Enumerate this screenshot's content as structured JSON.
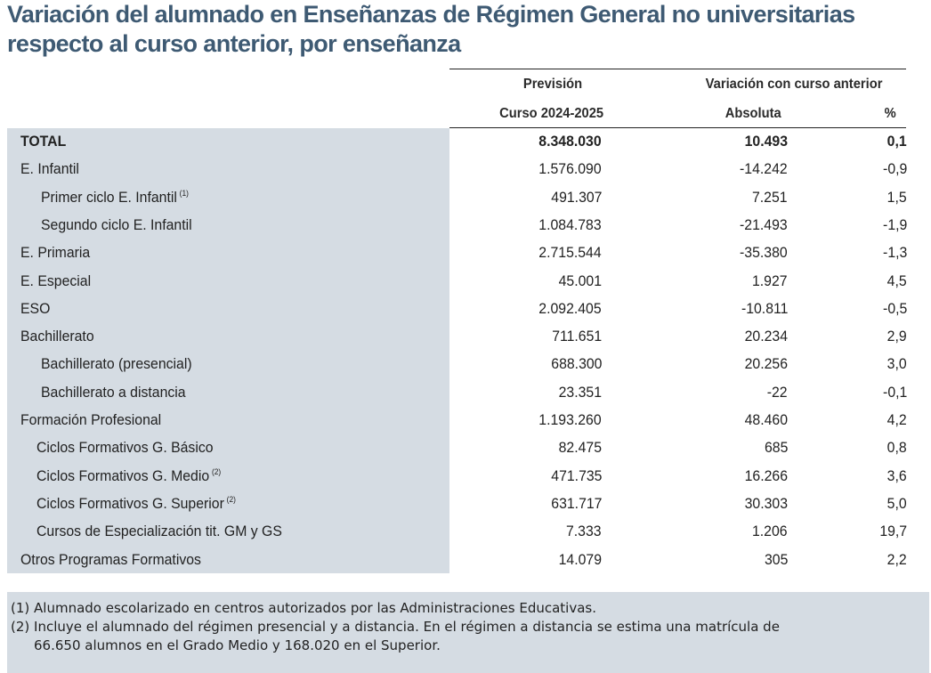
{
  "title": {
    "line1": "Variación del alumnado en Enseñanzas de Régimen General no universitarias",
    "line2": "respecto al curso anterior, por enseñanza"
  },
  "header": {
    "col1_line1": "Previsión",
    "col1_line2": "Curso 2024-2025",
    "group_label": "Variación con curso anterior",
    "col2": "Absoluta",
    "col3": "%"
  },
  "rows": [
    {
      "label": "TOTAL",
      "sup": "",
      "indent": 0,
      "bold": true,
      "prevision": "8.348.030",
      "absoluta": "10.493",
      "pct": "0,1"
    },
    {
      "label": "E. Infantil",
      "sup": "",
      "indent": 0,
      "bold": false,
      "prevision": "1.576.090",
      "absoluta": "-14.242",
      "pct": "-0,9"
    },
    {
      "label": "Primer ciclo E. Infantil",
      "sup": "(1)",
      "indent": 2,
      "bold": false,
      "prevision": "491.307",
      "absoluta": "7.251",
      "pct": "1,5"
    },
    {
      "label": "Segundo ciclo E. Infantil",
      "sup": "",
      "indent": 2,
      "bold": false,
      "prevision": "1.084.783",
      "absoluta": "-21.493",
      "pct": "-1,9"
    },
    {
      "label": "E. Primaria",
      "sup": "",
      "indent": 0,
      "bold": false,
      "prevision": "2.715.544",
      "absoluta": "-35.380",
      "pct": "-1,3"
    },
    {
      "label": "E. Especial",
      "sup": "",
      "indent": 0,
      "bold": false,
      "prevision": "45.001",
      "absoluta": "1.927",
      "pct": "4,5"
    },
    {
      "label": "ESO",
      "sup": "",
      "indent": 0,
      "bold": false,
      "prevision": "2.092.405",
      "absoluta": "-10.811",
      "pct": "-0,5"
    },
    {
      "label": "Bachillerato",
      "sup": "",
      "indent": 0,
      "bold": false,
      "prevision": "711.651",
      "absoluta": "20.234",
      "pct": "2,9"
    },
    {
      "label": "Bachillerato (presencial)",
      "sup": "",
      "indent": 2,
      "bold": false,
      "prevision": "688.300",
      "absoluta": "20.256",
      "pct": "3,0"
    },
    {
      "label": "Bachillerato a distancia",
      "sup": "",
      "indent": 2,
      "bold": false,
      "prevision": "23.351",
      "absoluta": "-22",
      "pct": "-0,1"
    },
    {
      "label": "Formación Profesional",
      "sup": "",
      "indent": 0,
      "bold": false,
      "prevision": "1.193.260",
      "absoluta": "48.460",
      "pct": "4,2"
    },
    {
      "label": "Ciclos Formativos G. Básico",
      "sup": "",
      "indent": 1,
      "bold": false,
      "prevision": "82.475",
      "absoluta": "685",
      "pct": "0,8"
    },
    {
      "label": "Ciclos Formativos G. Medio",
      "sup": "(2)",
      "indent": 1,
      "bold": false,
      "prevision": "471.735",
      "absoluta": "16.266",
      "pct": "3,6"
    },
    {
      "label": "Ciclos Formativos G. Superior",
      "sup": "(2)",
      "indent": 1,
      "bold": false,
      "prevision": "631.717",
      "absoluta": "30.303",
      "pct": "5,0"
    },
    {
      "label": "Cursos de Especialización tit. GM y GS",
      "sup": "",
      "indent": 1,
      "bold": false,
      "prevision": "7.333",
      "absoluta": "1.206",
      "pct": "19,7"
    },
    {
      "label": "Otros Programas Formativos",
      "sup": "",
      "indent": 0,
      "bold": false,
      "prevision": "14.079",
      "absoluta": "305",
      "pct": "2,2"
    }
  ],
  "notes": {
    "note1": "(1) Alumnado escolarizado en centros autorizados por las Administraciones Educativas.",
    "note2_line1": "(2) Incluye el alumnado del régimen presencial y a distancia. En el régimen a distancia se estima una matrícula de",
    "note2_line2": "66.650 alumnos en el Grado Medio y 168.020 en el Superior."
  }
}
